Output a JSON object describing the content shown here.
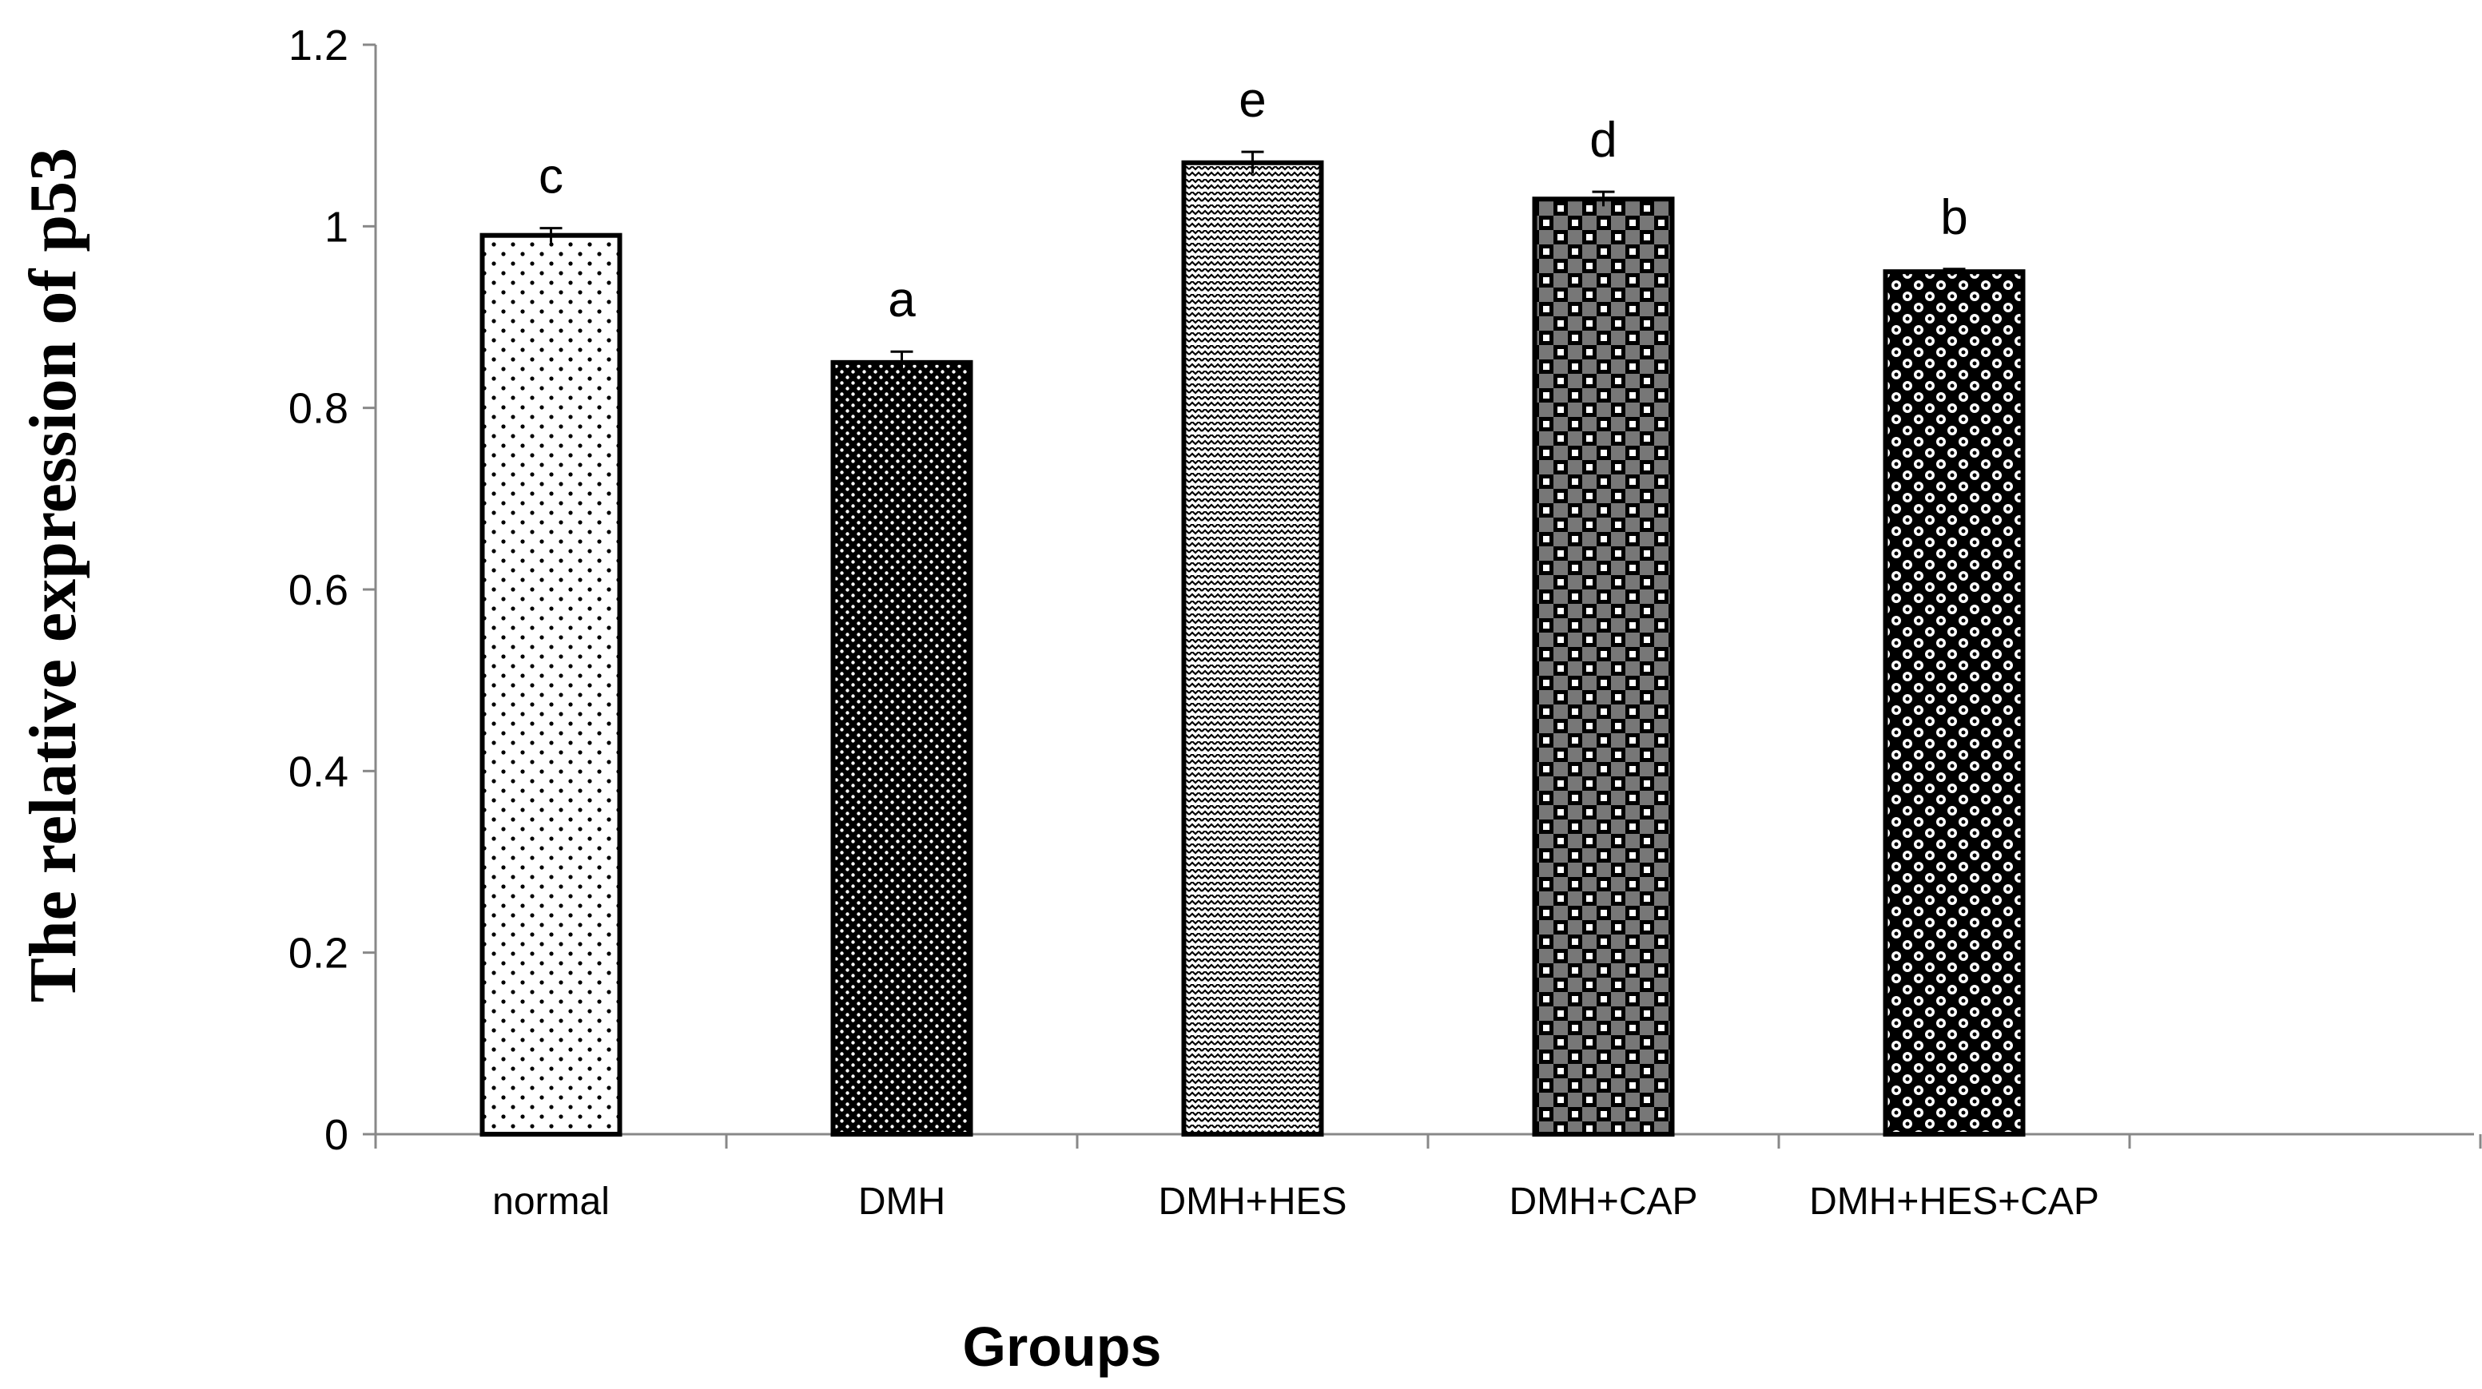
{
  "chart_data": {
    "type": "bar",
    "title": "",
    "xlabel": "Groups",
    "ylabel": "The relative expression of p53",
    "categories": [
      "normal",
      "DMH",
      "DMH+HES",
      "DMH+CAP",
      "DMH+HES+CAP"
    ],
    "values": [
      0.99,
      0.85,
      1.07,
      1.03,
      0.95
    ],
    "errors": [
      0.008,
      0.012,
      0.012,
      0.008,
      0.003
    ],
    "significance_letters": [
      "c",
      "a",
      "e",
      "d",
      "b"
    ],
    "patterns": [
      "sparse-dots",
      "dense-dots",
      "zigzag",
      "checker",
      "circles"
    ],
    "ylim": [
      0,
      1.2
    ],
    "yticks": [
      "0",
      "0.2",
      "0.4",
      "0.6",
      "0.8",
      "1",
      "1.2"
    ],
    "grid": false,
    "colors": {
      "bar_stroke": "#000000",
      "bar_fill": "#ffffff",
      "pattern_ink": "#000000",
      "axis": "#888888"
    }
  }
}
